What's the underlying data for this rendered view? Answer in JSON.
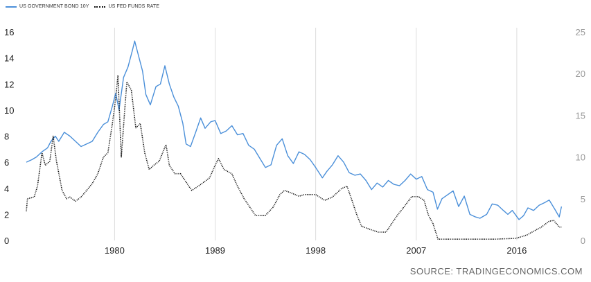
{
  "legend": {
    "series1": "US GOVERNMENT BOND 10Y",
    "series2": "US FED FUNDS RATE"
  },
  "source": "SOURCE: TRADINGECONOMICS.COM",
  "chart_data": {
    "type": "line",
    "title": "",
    "x_ticks": [
      "1980",
      "1989",
      "1998",
      "2007",
      "2016"
    ],
    "x_range": [
      1972.1,
      2020.1
    ],
    "y_left_ticks": [
      "0",
      "2",
      "4",
      "6",
      "8",
      "10",
      "12",
      "14",
      "16"
    ],
    "y_left_range": [
      0,
      16
    ],
    "y_right_ticks": [
      "0",
      "5",
      "10",
      "15",
      "20",
      "25"
    ],
    "y_right_range": [
      0,
      25
    ],
    "grid": "vertical",
    "legend_position": "top-left",
    "colors": {
      "bond": "#4a8fd9",
      "fed": "#111111"
    },
    "series": [
      {
        "name": "US GOVERNMENT BOND 10Y",
        "axis": "left",
        "style": "solid",
        "points": [
          [
            1972.1,
            6.0
          ],
          [
            1972.6,
            6.2
          ],
          [
            1973.0,
            6.4
          ],
          [
            1973.5,
            6.8
          ],
          [
            1974.0,
            7.1
          ],
          [
            1974.3,
            7.6
          ],
          [
            1974.7,
            8.0
          ],
          [
            1975.0,
            7.6
          ],
          [
            1975.5,
            8.3
          ],
          [
            1976.0,
            8.0
          ],
          [
            1976.5,
            7.6
          ],
          [
            1977.0,
            7.2
          ],
          [
            1977.5,
            7.4
          ],
          [
            1978.0,
            7.6
          ],
          [
            1978.5,
            8.3
          ],
          [
            1979.0,
            8.9
          ],
          [
            1979.4,
            9.1
          ],
          [
            1979.8,
            10.3
          ],
          [
            1980.1,
            11.3
          ],
          [
            1980.4,
            10.0
          ],
          [
            1980.8,
            12.5
          ],
          [
            1981.2,
            13.3
          ],
          [
            1981.6,
            14.6
          ],
          [
            1981.8,
            15.3
          ],
          [
            1982.1,
            14.3
          ],
          [
            1982.5,
            13.0
          ],
          [
            1982.8,
            11.2
          ],
          [
            1983.2,
            10.4
          ],
          [
            1983.7,
            11.8
          ],
          [
            1984.1,
            12.0
          ],
          [
            1984.5,
            13.4
          ],
          [
            1984.9,
            12.0
          ],
          [
            1985.3,
            11.0
          ],
          [
            1985.7,
            10.3
          ],
          [
            1986.1,
            9.0
          ],
          [
            1986.4,
            7.4
          ],
          [
            1986.8,
            7.2
          ],
          [
            1987.3,
            8.4
          ],
          [
            1987.7,
            9.4
          ],
          [
            1988.1,
            8.6
          ],
          [
            1988.6,
            9.1
          ],
          [
            1989.0,
            9.2
          ],
          [
            1989.5,
            8.2
          ],
          [
            1990.0,
            8.4
          ],
          [
            1990.5,
            8.8
          ],
          [
            1991.0,
            8.1
          ],
          [
            1991.5,
            8.2
          ],
          [
            1992.0,
            7.3
          ],
          [
            1992.5,
            7.0
          ],
          [
            1993.0,
            6.3
          ],
          [
            1993.5,
            5.6
          ],
          [
            1994.0,
            5.8
          ],
          [
            1994.5,
            7.3
          ],
          [
            1995.0,
            7.8
          ],
          [
            1995.5,
            6.5
          ],
          [
            1996.0,
            5.9
          ],
          [
            1996.5,
            6.8
          ],
          [
            1997.0,
            6.6
          ],
          [
            1997.5,
            6.2
          ],
          [
            1998.0,
            5.6
          ],
          [
            1998.6,
            4.8
          ],
          [
            1999.0,
            5.3
          ],
          [
            1999.5,
            5.8
          ],
          [
            2000.0,
            6.5
          ],
          [
            2000.5,
            6.0
          ],
          [
            2001.0,
            5.2
          ],
          [
            2001.5,
            5.0
          ],
          [
            2002.0,
            5.1
          ],
          [
            2002.5,
            4.6
          ],
          [
            2003.0,
            3.9
          ],
          [
            2003.5,
            4.4
          ],
          [
            2004.0,
            4.1
          ],
          [
            2004.5,
            4.6
          ],
          [
            2005.0,
            4.3
          ],
          [
            2005.5,
            4.2
          ],
          [
            2006.0,
            4.6
          ],
          [
            2006.5,
            5.1
          ],
          [
            2007.0,
            4.7
          ],
          [
            2007.5,
            4.9
          ],
          [
            2008.0,
            3.9
          ],
          [
            2008.5,
            3.7
          ],
          [
            2008.9,
            2.4
          ],
          [
            2009.3,
            3.2
          ],
          [
            2009.8,
            3.5
          ],
          [
            2010.3,
            3.8
          ],
          [
            2010.8,
            2.6
          ],
          [
            2011.3,
            3.4
          ],
          [
            2011.8,
            2.0
          ],
          [
            2012.3,
            1.8
          ],
          [
            2012.7,
            1.7
          ],
          [
            2013.3,
            2.0
          ],
          [
            2013.8,
            2.8
          ],
          [
            2014.3,
            2.7
          ],
          [
            2014.8,
            2.3
          ],
          [
            2015.2,
            2.0
          ],
          [
            2015.6,
            2.3
          ],
          [
            2016.2,
            1.6
          ],
          [
            2016.6,
            1.9
          ],
          [
            2017.0,
            2.5
          ],
          [
            2017.5,
            2.3
          ],
          [
            2018.0,
            2.7
          ],
          [
            2018.5,
            2.9
          ],
          [
            2018.9,
            3.1
          ],
          [
            2019.4,
            2.4
          ],
          [
            2019.8,
            1.8
          ],
          [
            2020.0,
            2.6
          ]
        ]
      },
      {
        "name": "US FED FUNDS RATE",
        "axis": "right",
        "style": "dotted",
        "points": [
          [
            1972.1,
            3.5
          ],
          [
            1972.2,
            5.0
          ],
          [
            1972.8,
            5.2
          ],
          [
            1973.1,
            6.5
          ],
          [
            1973.5,
            10.5
          ],
          [
            1973.8,
            9.0
          ],
          [
            1974.2,
            9.5
          ],
          [
            1974.5,
            12.5
          ],
          [
            1974.8,
            9.5
          ],
          [
            1975.3,
            6.0
          ],
          [
            1975.7,
            5.0
          ],
          [
            1976.0,
            5.2
          ],
          [
            1976.5,
            4.7
          ],
          [
            1977.0,
            5.2
          ],
          [
            1977.5,
            6.0
          ],
          [
            1978.0,
            6.8
          ],
          [
            1978.5,
            8.0
          ],
          [
            1979.0,
            10.0
          ],
          [
            1979.4,
            10.5
          ],
          [
            1979.8,
            14.0
          ],
          [
            1980.1,
            17.0
          ],
          [
            1980.3,
            19.8
          ],
          [
            1980.6,
            10.0
          ],
          [
            1980.9,
            15.5
          ],
          [
            1981.1,
            19.0
          ],
          [
            1981.5,
            18.0
          ],
          [
            1981.9,
            13.5
          ],
          [
            1982.3,
            14.0
          ],
          [
            1982.7,
            10.5
          ],
          [
            1983.1,
            8.5
          ],
          [
            1983.5,
            9.0
          ],
          [
            1984.0,
            9.5
          ],
          [
            1984.6,
            11.5
          ],
          [
            1984.9,
            9.0
          ],
          [
            1985.4,
            8.0
          ],
          [
            1985.9,
            8.0
          ],
          [
            1986.4,
            7.0
          ],
          [
            1986.9,
            6.0
          ],
          [
            1987.5,
            6.5
          ],
          [
            1988.0,
            7.0
          ],
          [
            1988.5,
            7.5
          ],
          [
            1989.0,
            9.0
          ],
          [
            1989.3,
            9.8
          ],
          [
            1989.8,
            8.5
          ],
          [
            1990.5,
            8.0
          ],
          [
            1991.0,
            6.5
          ],
          [
            1991.6,
            5.0
          ],
          [
            1992.1,
            4.0
          ],
          [
            1992.6,
            3.0
          ],
          [
            1993.5,
            3.0
          ],
          [
            1994.2,
            4.0
          ],
          [
            1994.8,
            5.5
          ],
          [
            1995.2,
            6.0
          ],
          [
            1995.8,
            5.7
          ],
          [
            1996.5,
            5.3
          ],
          [
            1997.0,
            5.5
          ],
          [
            1997.5,
            5.5
          ],
          [
            1998.0,
            5.5
          ],
          [
            1998.8,
            4.8
          ],
          [
            1999.5,
            5.2
          ],
          [
            2000.3,
            6.2
          ],
          [
            2000.8,
            6.5
          ],
          [
            2001.2,
            5.0
          ],
          [
            2001.7,
            3.0
          ],
          [
            2002.1,
            1.7
          ],
          [
            2002.9,
            1.3
          ],
          [
            2003.6,
            1.0
          ],
          [
            2004.3,
            1.0
          ],
          [
            2004.7,
            1.8
          ],
          [
            2005.3,
            3.0
          ],
          [
            2005.9,
            4.0
          ],
          [
            2006.6,
            5.25
          ],
          [
            2007.2,
            5.25
          ],
          [
            2007.7,
            4.8
          ],
          [
            2008.1,
            3.0
          ],
          [
            2008.5,
            2.0
          ],
          [
            2008.95,
            0.15
          ],
          [
            2010.0,
            0.15
          ],
          [
            2012.0,
            0.15
          ],
          [
            2014.0,
            0.15
          ],
          [
            2015.9,
            0.25
          ],
          [
            2016.3,
            0.4
          ],
          [
            2016.9,
            0.65
          ],
          [
            2017.5,
            1.1
          ],
          [
            2018.2,
            1.6
          ],
          [
            2018.9,
            2.3
          ],
          [
            2019.3,
            2.4
          ],
          [
            2019.8,
            1.6
          ],
          [
            2020.0,
            1.6
          ]
        ]
      }
    ]
  }
}
